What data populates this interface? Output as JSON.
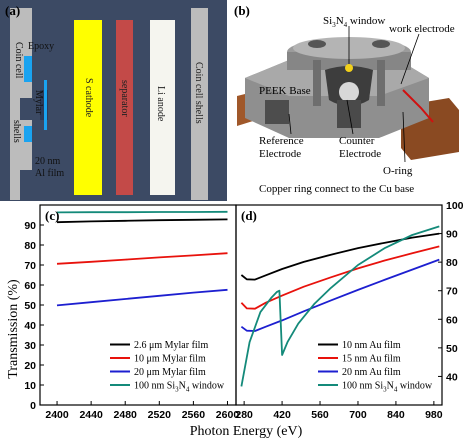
{
  "panel_a": {
    "tag": "(a)",
    "labels": {
      "coin_cell": "Coin cell",
      "epoxy": "Epoxy",
      "mylar": "Mylar",
      "shells": "shells",
      "al_film_1": "20 nm",
      "al_film_2": "Al film",
      "s_cathode": "S cathode",
      "separator": "separator",
      "li_anode": "Li anode",
      "coin_cell_shells": "Coin cell shells"
    },
    "colors": {
      "background": "#3c4a64",
      "shell": "#bcbcbc",
      "cathode": "#ffff00",
      "separator": "#c34a48",
      "anode": "#f5f5ef",
      "epoxy": "#1aa3f0"
    }
  },
  "panel_b": {
    "tag": "(b)",
    "labels": {
      "window_pre": "Si",
      "window_sub1": "3",
      "window_mid": "N",
      "window_sub2": "4",
      "window_post": " window",
      "work": "work electrode",
      "peek": "PEEK Base",
      "reference_1": "Reference",
      "reference_2": "Electrode",
      "counter_1": "Counter",
      "counter_2": "Electrode",
      "oring": "O-ring",
      "copper": "Copper ring connect to the Cu base"
    }
  },
  "chart_data": [
    {
      "tag": "(c)",
      "type": "line",
      "xlim": [
        2380,
        2610
      ],
      "ylim": [
        0,
        100
      ],
      "xticks": [
        2400,
        2440,
        2480,
        2520,
        2560,
        2600
      ],
      "yticks": [
        0,
        10,
        20,
        30,
        40,
        50,
        60,
        70,
        80,
        90
      ],
      "ylabel": "Transmission (%)",
      "grid": false,
      "legend_position": "bottom",
      "legend": [
        {
          "pre": "2.6 μm Mylar film",
          "sub": "",
          "post": ""
        },
        {
          "pre": "10 μm Mylar film",
          "sub": "",
          "post": ""
        },
        {
          "pre": "20 μm Mylar film",
          "sub": "",
          "post": ""
        },
        {
          "pre": "100 nm Si",
          "sub": "3",
          "mid": "N",
          "sub2": "4",
          "post": " window"
        }
      ],
      "series": [
        {
          "color": "#000000",
          "x": [
            2400,
            2440,
            2480,
            2520,
            2560,
            2600
          ],
          "y": [
            91.4,
            91.8,
            92.1,
            92.4,
            92.6,
            92.8
          ]
        },
        {
          "color": "#e8120c",
          "x": [
            2400,
            2440,
            2480,
            2520,
            2560,
            2600
          ],
          "y": [
            70.6,
            71.6,
            72.7,
            73.8,
            74.8,
            75.9
          ]
        },
        {
          "color": "#1d1fd0",
          "x": [
            2400,
            2440,
            2480,
            2520,
            2560,
            2600
          ],
          "y": [
            49.8,
            51.4,
            53.0,
            54.6,
            56.2,
            57.6
          ]
        },
        {
          "color": "#148a7a",
          "x": [
            2400,
            2440,
            2480,
            2520,
            2560,
            2600
          ],
          "y": [
            96.3,
            96.4,
            96.4,
            96.5,
            96.5,
            96.6
          ]
        }
      ]
    },
    {
      "tag": "(d)",
      "type": "line",
      "xlim": [
        250,
        1010
      ],
      "ylim": [
        30,
        100
      ],
      "xticks": [
        280,
        420,
        560,
        700,
        840,
        980
      ],
      "yticks": [
        40,
        50,
        60,
        70,
        80,
        90,
        100
      ],
      "grid": false,
      "legend_position": "bottom",
      "legend": [
        {
          "pre": "10 nm Au film",
          "sub": "",
          "post": ""
        },
        {
          "pre": "15 nm Au film",
          "sub": "",
          "post": ""
        },
        {
          "pre": "20 nm Au film",
          "sub": "",
          "post": ""
        },
        {
          "pre": "100 nm Si",
          "sub": "3",
          "mid": "N",
          "sub2": "4",
          "post": " window"
        }
      ],
      "series": [
        {
          "color": "#000000",
          "x": [
            270,
            290,
            320,
            360,
            420,
            500,
            600,
            700,
            800,
            900,
            1000
          ],
          "y": [
            75.5,
            74.0,
            73.9,
            75.4,
            77.6,
            80.1,
            82.6,
            84.9,
            86.8,
            88.6,
            90.0
          ]
        },
        {
          "color": "#e8120c",
          "x": [
            270,
            290,
            320,
            360,
            420,
            500,
            600,
            700,
            800,
            900,
            1000
          ],
          "y": [
            65.8,
            63.8,
            63.7,
            65.8,
            68.3,
            71.4,
            74.7,
            77.8,
            80.6,
            83.1,
            85.5
          ]
        },
        {
          "color": "#1d1fd0",
          "x": [
            270,
            290,
            320,
            360,
            420,
            500,
            600,
            700,
            800,
            900,
            1000
          ],
          "y": [
            57.4,
            56.0,
            55.9,
            57.4,
            59.6,
            62.8,
            66.6,
            70.3,
            73.9,
            77.4,
            80.9
          ]
        },
        {
          "color": "#148a7a",
          "x": [
            270,
            300,
            340,
            380,
            400,
            410,
            420,
            440,
            480,
            540,
            600,
            700,
            800,
            900,
            1000
          ],
          "y": [
            36.5,
            52.0,
            62.5,
            67.5,
            69.5,
            70.0,
            47.5,
            52.0,
            58.5,
            65.5,
            71.0,
            79.0,
            85.0,
            89.5,
            92.5
          ]
        }
      ]
    }
  ],
  "shared_xlabel": "Photon Energy (eV)"
}
